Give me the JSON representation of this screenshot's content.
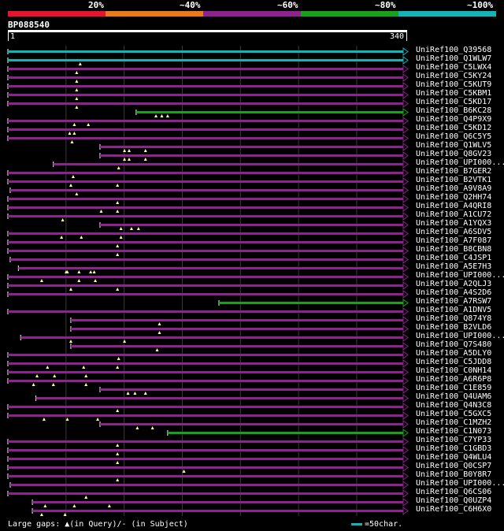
{
  "legend": {
    "labels": [
      "20%",
      "~40%",
      "~60%",
      "~80%",
      "~100%"
    ],
    "colors": [
      "#e8132e",
      "#ec7a1b",
      "#8e228e",
      "#18a21b",
      "#12b5b5"
    ]
  },
  "query": {
    "id": "BP088540",
    "start_label": "1",
    "end_label": "340"
  },
  "footer": {
    "text": "Large gaps: ▲(in Query)/‐ (in Subject)",
    "scale_label": "=50char."
  },
  "chart_data": {
    "type": "alignment",
    "query_length": 340,
    "hits": [
      {
        "name": "UniRef100_Q39568",
        "start": 1,
        "end": 340,
        "color": "#12b5b5",
        "gaps": []
      },
      {
        "name": "UniRef100_Q1WLW7",
        "start": 1,
        "end": 340,
        "color": "#12b5b5",
        "gaps": [
          63
        ]
      },
      {
        "name": "UniRef100_C5LWX4",
        "start": 1,
        "end": 340,
        "color": "#8e228e",
        "gaps": [
          60
        ]
      },
      {
        "name": "UniRef100_C5KY24",
        "start": 1,
        "end": 340,
        "color": "#8e228e",
        "gaps": [
          60
        ]
      },
      {
        "name": "UniRef100_C5KUT9",
        "start": 1,
        "end": 340,
        "color": "#8e228e",
        "gaps": [
          60
        ]
      },
      {
        "name": "UniRef100_C5KBM1",
        "start": 1,
        "end": 340,
        "color": "#8e228e",
        "gaps": [
          60
        ]
      },
      {
        "name": "UniRef100_C5KD17",
        "start": 1,
        "end": 340,
        "color": "#8e228e",
        "gaps": [
          60
        ]
      },
      {
        "name": "UniRef100_B6KC28",
        "start": 111,
        "end": 340,
        "color": "#18a21b",
        "gaps": [
          128,
          133,
          138
        ]
      },
      {
        "name": "UniRef100_Q4P9X9",
        "start": 1,
        "end": 340,
        "color": "#8e228e",
        "gaps": [
          58,
          70
        ]
      },
      {
        "name": "UniRef100_C5KD12",
        "start": 1,
        "end": 340,
        "color": "#8e228e",
        "gaps": [
          54,
          58
        ]
      },
      {
        "name": "UniRef100_Q6C5Y5",
        "start": 1,
        "end": 340,
        "color": "#8e228e",
        "gaps": [
          56
        ]
      },
      {
        "name": "UniRef100_Q1WLV5",
        "start": 80,
        "end": 340,
        "color": "#8e228e",
        "gaps": [
          101,
          105,
          119
        ]
      },
      {
        "name": "UniRef100_Q8GV23",
        "start": 80,
        "end": 340,
        "color": "#8e228e",
        "gaps": [
          101,
          105,
          119
        ]
      },
      {
        "name": "UniRef100_UPI000...",
        "start": 40,
        "end": 340,
        "color": "#8e228e",
        "gaps": [
          96
        ]
      },
      {
        "name": "UniRef100_B7GER2",
        "start": 1,
        "end": 340,
        "color": "#8e228e",
        "gaps": [
          57
        ]
      },
      {
        "name": "UniRef100_B2VTK1",
        "start": 1,
        "end": 340,
        "color": "#8e228e",
        "gaps": [
          55,
          95
        ]
      },
      {
        "name": "UniRef100_A9V8A9",
        "start": 3,
        "end": 340,
        "color": "#8e228e",
        "gaps": [
          60
        ]
      },
      {
        "name": "UniRef100_Q2HH74",
        "start": 1,
        "end": 340,
        "color": "#8e228e",
        "gaps": [
          95
        ]
      },
      {
        "name": "UniRef100_A4QRI8",
        "start": 1,
        "end": 340,
        "color": "#8e228e",
        "gaps": [
          81,
          95
        ]
      },
      {
        "name": "UniRef100_A1CU72",
        "start": 1,
        "end": 340,
        "color": "#8e228e",
        "gaps": [
          48
        ]
      },
      {
        "name": "UniRef100_A1YQX3",
        "start": 80,
        "end": 340,
        "color": "#8e228e",
        "gaps": [
          98,
          107,
          113
        ]
      },
      {
        "name": "UniRef100_A6SDV5",
        "start": 1,
        "end": 340,
        "color": "#8e228e",
        "gaps": [
          47,
          64,
          98
        ]
      },
      {
        "name": "UniRef100_A7F087",
        "start": 1,
        "end": 340,
        "color": "#8e228e",
        "gaps": [
          95
        ]
      },
      {
        "name": "UniRef100_B8CBN8",
        "start": 1,
        "end": 340,
        "color": "#8e228e",
        "gaps": [
          95
        ]
      },
      {
        "name": "UniRef100_C4JSP1",
        "start": 3,
        "end": 340,
        "color": "#8e228e",
        "gaps": []
      },
      {
        "name": "UniRef100_A5E7H3",
        "start": 10,
        "end": 340,
        "color": "#8e228e",
        "gaps": [
          51,
          62,
          72,
          52,
          75
        ]
      },
      {
        "name": "UniRef100_UPI000...",
        "start": 1,
        "end": 340,
        "color": "#8e228e",
        "gaps": [
          30,
          62,
          76
        ]
      },
      {
        "name": "UniRef100_A2QLJ3",
        "start": 1,
        "end": 340,
        "color": "#8e228e",
        "gaps": [
          55,
          95
        ]
      },
      {
        "name": "UniRef100_A4S2D6",
        "start": 1,
        "end": 340,
        "color": "#8e228e",
        "gaps": []
      },
      {
        "name": "UniRef100_A7RSW7",
        "start": 182,
        "end": 340,
        "color": "#18a21b",
        "gaps": []
      },
      {
        "name": "UniRef100_A1DNV5",
        "start": 1,
        "end": 340,
        "color": "#8e228e",
        "gaps": []
      },
      {
        "name": "UniRef100_Q874Y8",
        "start": 55,
        "end": 340,
        "color": "#8e228e",
        "gaps": [
          131
        ]
      },
      {
        "name": "UniRef100_B2VLD6",
        "start": 55,
        "end": 340,
        "color": "#8e228e",
        "gaps": [
          131
        ]
      },
      {
        "name": "UniRef100_UPI000...",
        "start": 12,
        "end": 340,
        "color": "#8e228e",
        "gaps": [
          55,
          101
        ]
      },
      {
        "name": "UniRef100_Q7S480",
        "start": 55,
        "end": 340,
        "color": "#8e228e",
        "gaps": [
          129
        ]
      },
      {
        "name": "UniRef100_A5DLY0",
        "start": 1,
        "end": 340,
        "color": "#8e228e",
        "gaps": [
          96
        ]
      },
      {
        "name": "UniRef100_C5JDD8",
        "start": 1,
        "end": 340,
        "color": "#8e228e",
        "gaps": [
          35,
          66,
          95
        ]
      },
      {
        "name": "UniRef100_C0NH14",
        "start": 1,
        "end": 340,
        "color": "#8e228e",
        "gaps": [
          26,
          41,
          68
        ]
      },
      {
        "name": "UniRef100_A6R6P8",
        "start": 1,
        "end": 340,
        "color": "#8e228e",
        "gaps": [
          23,
          40,
          68
        ]
      },
      {
        "name": "UniRef100_C1E859",
        "start": 80,
        "end": 340,
        "color": "#8e228e",
        "gaps": [
          104,
          110,
          119
        ]
      },
      {
        "name": "UniRef100_Q4UAM6",
        "start": 25,
        "end": 340,
        "color": "#8e228e",
        "gaps": []
      },
      {
        "name": "UniRef100_Q4N3C8",
        "start": 1,
        "end": 340,
        "color": "#8e228e",
        "gaps": [
          95
        ]
      },
      {
        "name": "UniRef100_C5GXC5",
        "start": 1,
        "end": 340,
        "color": "#8e228e",
        "gaps": [
          32,
          52,
          78
        ]
      },
      {
        "name": "UniRef100_C1MZH2",
        "start": 80,
        "end": 340,
        "color": "#8e228e",
        "gaps": [
          112,
          125
        ]
      },
      {
        "name": "UniRef100_C1N073",
        "start": 138,
        "end": 340,
        "color": "#18a21b",
        "gaps": []
      },
      {
        "name": "UniRef100_C7YP33",
        "start": 1,
        "end": 340,
        "color": "#8e228e",
        "gaps": [
          95
        ]
      },
      {
        "name": "UniRef100_C1GBD3",
        "start": 1,
        "end": 340,
        "color": "#8e228e",
        "gaps": [
          95
        ]
      },
      {
        "name": "UniRef100_Q4WLU4",
        "start": 1,
        "end": 340,
        "color": "#8e228e",
        "gaps": [
          95
        ]
      },
      {
        "name": "UniRef100_Q0CSP7",
        "start": 1,
        "end": 340,
        "color": "#8e228e",
        "gaps": [
          152
        ]
      },
      {
        "name": "UniRef100_B0Y8R7",
        "start": 1,
        "end": 340,
        "color": "#8e228e",
        "gaps": [
          95
        ]
      },
      {
        "name": "UniRef100_UPI000...",
        "start": 3,
        "end": 340,
        "color": "#8e228e",
        "gaps": []
      },
      {
        "name": "UniRef100_Q6CS06",
        "start": 1,
        "end": 340,
        "color": "#8e228e",
        "gaps": [
          68
        ]
      },
      {
        "name": "UniRef100_Q0UZP4",
        "start": 22,
        "end": 340,
        "color": "#8e228e",
        "gaps": [
          33,
          58,
          88
        ]
      },
      {
        "name": "UniRef100_C6H6X0",
        "start": 22,
        "end": 340,
        "color": "#8e228e",
        "gaps": [
          30,
          50
        ]
      }
    ],
    "title": "BP088540",
    "xlabel": "",
    "ylabel": "",
    "xlim": [
      1,
      340
    ]
  }
}
